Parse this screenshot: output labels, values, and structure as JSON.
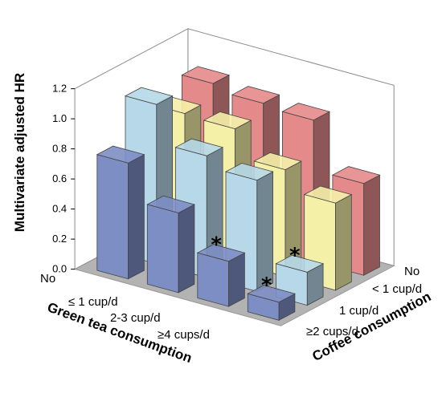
{
  "chart_data": {
    "type": "bar3d",
    "ylabel": "Multivariate adjusted HR",
    "xlabel": "Green tea consumption",
    "zlabel": "Coffee consumption",
    "yticks": [
      "0.0",
      "0.2",
      "0.4",
      "0.6",
      "0.8",
      "1.0",
      "1.2"
    ],
    "ylim": [
      0,
      1.2
    ],
    "green_tea_categories": [
      "No",
      "≤ 1 cup/d",
      "2-3 cup/d",
      "≥4 cups/d"
    ],
    "coffee_categories": [
      "No",
      "< 1 cup/d",
      "1 cup/d",
      "≥2 cups/d"
    ],
    "series": [
      {
        "coffee": "No",
        "color": "#e58a8a",
        "values": [
          1.0,
          0.96,
          0.94,
          0.61
        ]
      },
      {
        "coffee": "< 1 cup/d",
        "color": "#f5f0a8",
        "values": [
          0.9,
          0.89,
          0.71,
          0.58
        ]
      },
      {
        "coffee": "1 cup/d",
        "color": "#b6d8e8",
        "values": [
          1.06,
          0.81,
          0.74,
          0.22
        ]
      },
      {
        "coffee": "≥2 cups/d",
        "color": "#7d8ec4",
        "values": [
          0.77,
          0.53,
          0.3,
          0.12
        ]
      }
    ],
    "significance_marker": "*",
    "significant": [
      {
        "coffee": "1 cup/d",
        "green_tea": "≥4 cups/d"
      },
      {
        "coffee": "≥2 cups/d",
        "green_tea": "2-3 cup/d"
      },
      {
        "coffee": "≥2 cups/d",
        "green_tea": "≥4 cups/d"
      }
    ],
    "grid": false
  }
}
